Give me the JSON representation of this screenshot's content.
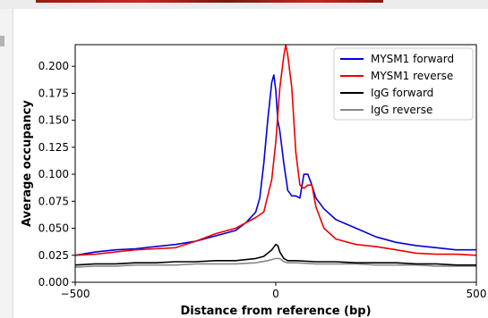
{
  "chart_data": {
    "type": "line",
    "xlabel": "Distance from reference (bp)",
    "ylabel": "Average occupancy",
    "xlim": [
      -500,
      500
    ],
    "ylim": [
      0.0,
      0.22
    ],
    "xticks": [
      -500,
      0,
      500
    ],
    "xtick_labels": [
      "−500",
      "0",
      "500"
    ],
    "yticks": [
      0.0,
      0.025,
      0.05,
      0.075,
      0.1,
      0.125,
      0.15,
      0.175,
      0.2
    ],
    "ytick_labels": [
      "0.000",
      "0.025",
      "0.050",
      "0.075",
      "0.100",
      "0.125",
      "0.150",
      "0.175",
      "0.200"
    ],
    "grid": false,
    "legend_position": "top-right",
    "series": [
      {
        "name": "MYSM1 forward",
        "color": "#0000dd",
        "x": [
          -500,
          -450,
          -400,
          -350,
          -300,
          -250,
          -200,
          -150,
          -100,
          -75,
          -50,
          -40,
          -30,
          -20,
          -10,
          -5,
          0,
          5,
          10,
          20,
          30,
          40,
          50,
          60,
          70,
          80,
          90,
          100,
          120,
          150,
          200,
          250,
          300,
          350,
          400,
          450,
          500
        ],
        "y": [
          0.025,
          0.028,
          0.03,
          0.031,
          0.033,
          0.035,
          0.038,
          0.043,
          0.048,
          0.055,
          0.065,
          0.078,
          0.11,
          0.15,
          0.185,
          0.192,
          0.178,
          0.15,
          0.14,
          0.11,
          0.085,
          0.08,
          0.08,
          0.078,
          0.1,
          0.1,
          0.09,
          0.078,
          0.068,
          0.058,
          0.05,
          0.042,
          0.037,
          0.034,
          0.032,
          0.03,
          0.03
        ]
      },
      {
        "name": "MYSM1 reverse",
        "color": "#ee0000",
        "x": [
          -500,
          -450,
          -400,
          -350,
          -300,
          -250,
          -200,
          -150,
          -100,
          -75,
          -50,
          -30,
          -10,
          0,
          10,
          20,
          25,
          30,
          40,
          50,
          60,
          70,
          80,
          90,
          100,
          120,
          150,
          200,
          250,
          300,
          350,
          400,
          450,
          500
        ],
        "y": [
          0.025,
          0.026,
          0.028,
          0.03,
          0.031,
          0.032,
          0.038,
          0.045,
          0.05,
          0.055,
          0.06,
          0.065,
          0.095,
          0.13,
          0.18,
          0.21,
          0.22,
          0.21,
          0.18,
          0.12,
          0.09,
          0.087,
          0.09,
          0.09,
          0.07,
          0.05,
          0.04,
          0.035,
          0.033,
          0.03,
          0.027,
          0.026,
          0.026,
          0.025
        ]
      },
      {
        "name": "IgG forward",
        "color": "#000000",
        "x": [
          -500,
          -450,
          -400,
          -350,
          -300,
          -250,
          -200,
          -150,
          -100,
          -50,
          -30,
          -10,
          0,
          5,
          10,
          20,
          30,
          50,
          100,
          150,
          200,
          250,
          300,
          350,
          400,
          450,
          500
        ],
        "y": [
          0.016,
          0.017,
          0.017,
          0.018,
          0.018,
          0.019,
          0.019,
          0.02,
          0.02,
          0.022,
          0.024,
          0.03,
          0.035,
          0.034,
          0.028,
          0.022,
          0.02,
          0.02,
          0.019,
          0.019,
          0.018,
          0.018,
          0.018,
          0.017,
          0.017,
          0.016,
          0.016
        ]
      },
      {
        "name": "IgG reverse",
        "color": "#888888",
        "x": [
          -500,
          -450,
          -400,
          -350,
          -300,
          -250,
          -200,
          -150,
          -100,
          -50,
          -20,
          0,
          10,
          20,
          30,
          50,
          100,
          150,
          200,
          250,
          300,
          350,
          400,
          450,
          500
        ],
        "y": [
          0.014,
          0.015,
          0.015,
          0.016,
          0.016,
          0.016,
          0.017,
          0.017,
          0.017,
          0.018,
          0.02,
          0.022,
          0.022,
          0.019,
          0.018,
          0.018,
          0.017,
          0.017,
          0.017,
          0.016,
          0.016,
          0.016,
          0.015,
          0.015,
          0.015
        ]
      }
    ]
  }
}
